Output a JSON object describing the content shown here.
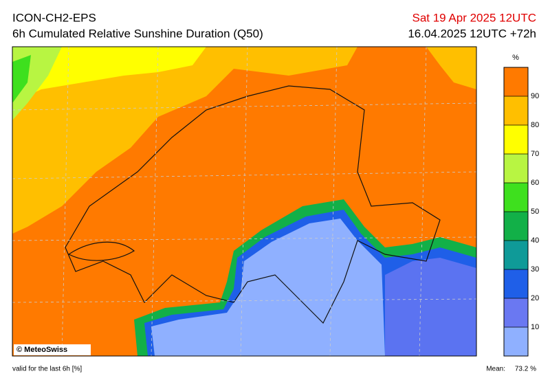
{
  "header": {
    "model": "ICON-CH2-EPS",
    "product": "6h Cumulated Relative Sunshine Duration (Q50)",
    "valid_time": "Sat 19 Apr 2025 12UTC",
    "run_info": "16.04.2025 12UTC +72h"
  },
  "map": {
    "credit": "© MeteoSwiss"
  },
  "colorbar": {
    "unit": "%",
    "lim": [
      0,
      100
    ],
    "ticks": [
      10,
      20,
      30,
      40,
      50,
      60,
      70,
      80,
      90
    ],
    "colors": [
      "#8fb0ff",
      "#6a78f2",
      "#1f5fe8",
      "#0f9a98",
      "#12b048",
      "#3ee01e",
      "#b8f542",
      "#ffff00",
      "#ffbf00",
      "#ff7a00"
    ]
  },
  "footer": {
    "validity": "valid for the last 6h [%]",
    "mean_label": "Mean:",
    "mean_value": "73.2 %"
  }
}
